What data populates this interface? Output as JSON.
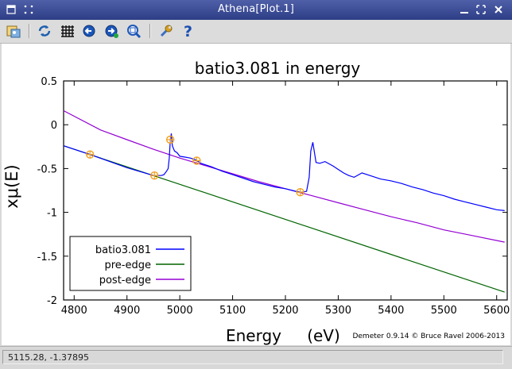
{
  "window": {
    "title": "Athena[Plot.1]",
    "controls": [
      "shade-icon",
      "minimize-icon",
      "maximize-icon",
      "close-icon"
    ]
  },
  "toolbar": {
    "tools": [
      {
        "name": "save-image-icon"
      },
      {
        "name": "refresh-icon"
      },
      {
        "name": "grid-icon"
      },
      {
        "name": "zoom-in-icon"
      },
      {
        "name": "zoom-out-icon"
      },
      {
        "name": "zoom-fit-icon"
      },
      {
        "name": "settings-wrench-icon"
      },
      {
        "name": "help-icon"
      }
    ]
  },
  "colors": {
    "titlebar": "#3a4b93",
    "data": "#0000ff",
    "pre_edge": "#006400",
    "post_edge": "#9400d3",
    "marker": "#f0a020"
  },
  "chart_data": {
    "type": "line",
    "title": "batio3.081 in energy",
    "xlabel": "Energy",
    "xunit": "(eV)",
    "ylabel": "xμ(E)",
    "xlim": [
      4780,
      5620
    ],
    "ylim": [
      -2,
      0.5
    ],
    "xticks": [
      4800,
      4900,
      5000,
      5100,
      5200,
      5300,
      5400,
      5500,
      5600
    ],
    "yticks": [
      0.5,
      0,
      -0.5,
      -1,
      -1.5,
      -2
    ],
    "ytick_labels": [
      "0.5",
      "0",
      "-0.5",
      "-1",
      "-1.5",
      "-2"
    ],
    "grid": false,
    "legend_position": "bottom-left",
    "credit": "Demeter 0.9.14 © Bruce Ravel 2006-2013",
    "series": [
      {
        "name": "batio3.081",
        "color": "#0000ff",
        "x": [
          4780,
          4830,
          4900,
          4950,
          4965,
          4970,
          4975,
          4978,
          4980,
          4982,
          4984,
          4986,
          4990,
          4995,
          5000,
          5010,
          5020,
          5030,
          5040,
          5060,
          5080,
          5100,
          5120,
          5140,
          5160,
          5180,
          5200,
          5220,
          5230,
          5240,
          5245,
          5248,
          5252,
          5258,
          5265,
          5275,
          5290,
          5300,
          5310,
          5320,
          5330,
          5345,
          5360,
          5380,
          5400,
          5420,
          5440,
          5460,
          5480,
          5500,
          5520,
          5540,
          5560,
          5580,
          5600,
          5615
        ],
        "y": [
          -0.24,
          -0.34,
          -0.49,
          -0.58,
          -0.58,
          -0.57,
          -0.53,
          -0.5,
          -0.38,
          -0.18,
          -0.1,
          -0.24,
          -0.3,
          -0.32,
          -0.36,
          -0.37,
          -0.38,
          -0.4,
          -0.44,
          -0.48,
          -0.53,
          -0.57,
          -0.61,
          -0.65,
          -0.68,
          -0.71,
          -0.73,
          -0.76,
          -0.77,
          -0.76,
          -0.6,
          -0.3,
          -0.2,
          -0.43,
          -0.44,
          -0.42,
          -0.47,
          -0.51,
          -0.55,
          -0.58,
          -0.6,
          -0.55,
          -0.58,
          -0.62,
          -0.64,
          -0.67,
          -0.71,
          -0.74,
          -0.78,
          -0.81,
          -0.85,
          -0.88,
          -0.91,
          -0.94,
          -0.97,
          -0.98
        ]
      },
      {
        "name": "pre-edge",
        "color": "#006400",
        "x": [
          4780,
          5615
        ],
        "y": [
          -0.24,
          -1.91
        ]
      },
      {
        "name": "post-edge",
        "color": "#9400d3",
        "x": [
          4780,
          4850,
          4900,
          4950,
          5000,
          5050,
          5100,
          5150,
          5200,
          5250,
          5300,
          5350,
          5400,
          5450,
          5500,
          5550,
          5615
        ],
        "y": [
          0.16,
          -0.06,
          -0.17,
          -0.28,
          -0.38,
          -0.47,
          -0.56,
          -0.65,
          -0.73,
          -0.81,
          -0.89,
          -0.97,
          -1.05,
          -1.12,
          -1.2,
          -1.26,
          -1.34
        ]
      }
    ],
    "markers": {
      "color": "#f0a020",
      "x": [
        4830,
        4952,
        4982,
        5032,
        5228
      ],
      "y": [
        -0.34,
        -0.58,
        -0.17,
        -0.41,
        -0.77
      ]
    }
  },
  "status": {
    "coordinates": "5115.28, -1.37895"
  }
}
